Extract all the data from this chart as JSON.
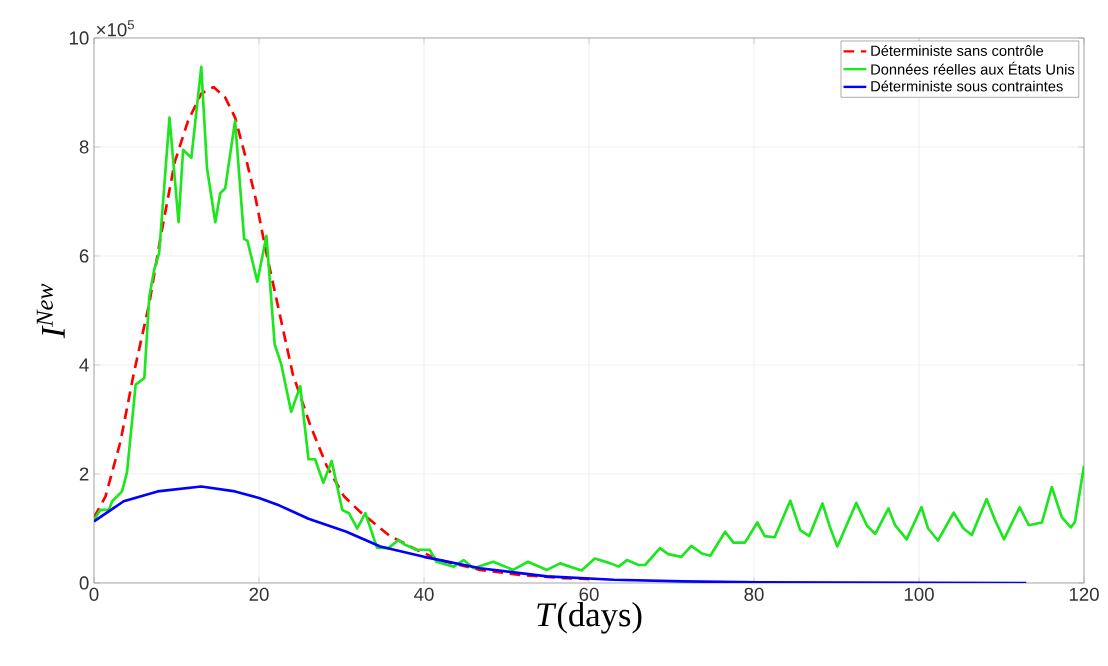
{
  "chart_data": {
    "type": "line",
    "xlabel": "*T*(days)",
    "ylabel": "I$^{New}$",
    "annotations": [
      "×10$^{5}$"
    ],
    "xlim": [
      0,
      120
    ],
    "ylim": [
      0,
      10
    ],
    "xticks": [
      0,
      20,
      40,
      60,
      80,
      100,
      120
    ],
    "yticks": [
      0,
      2,
      4,
      6,
      8,
      10
    ],
    "grid": true,
    "legend": "top right",
    "marker": "none",
    "series": [
      {
        "name": "Déterministe sans contrôle",
        "color": "#ff0000",
        "line_style": "dashed",
        "x": [
          0,
          1.4,
          3.2,
          4.8,
          6.7,
          8.1,
          9.8,
          11.4,
          13,
          14.5,
          15.9,
          17.1,
          18.4,
          19.6,
          20.8,
          22.5,
          24.1,
          26.2,
          28.2,
          30.3,
          32.3,
          35.8,
          39.1,
          41.9,
          46.8,
          51.6,
          56.9,
          60
        ],
        "values": [
          1.2,
          1.59,
          2.59,
          3.83,
          5.13,
          6.37,
          7.73,
          8.48,
          8.98,
          9.1,
          8.91,
          8.54,
          7.8,
          7.05,
          6.12,
          4.94,
          3.83,
          2.9,
          2.15,
          1.59,
          1.3,
          0.87,
          0.61,
          0.42,
          0.24,
          0.15,
          0.09,
          0.07
        ]
      },
      {
        "name": "Données réelles aux États Unis",
        "color": "#1ee61e",
        "line_style": "solid",
        "x": [
          0,
          0.75,
          1.8,
          2.2,
          3.4,
          4.0,
          5.05,
          6.1,
          6.7,
          7.3,
          7.9,
          9.15,
          10.25,
          10.8,
          11.8,
          13.0,
          13.7,
          14.7,
          15.3,
          15.9,
          17.1,
          18.2,
          18.6,
          19.8,
          20.9,
          21.9,
          22.7,
          23.9,
          25.0,
          26.0,
          26.8,
          27.8,
          28.8,
          30.1,
          30.9,
          31.9,
          32.9,
          34.3,
          35.7,
          36.9,
          37.7,
          39.1,
          40.7,
          41.5,
          43.6,
          44.8,
          46.0,
          48.4,
          50.8,
          52.6,
          54.9,
          56.5,
          59.1,
          60.7,
          62.6,
          63.6,
          64.6,
          66.0,
          66.8,
          68.6,
          69.6,
          71.2,
          72.4,
          73.7,
          74.7,
          76.5,
          77.5,
          78.9,
          80.4,
          81.3,
          82.5,
          84.4,
          85.6,
          86.7,
          88.3,
          89.2,
          90.1,
          92.4,
          93.7,
          94.7,
          96.3,
          97.1,
          98.5,
          100.3,
          101.1,
          102.3,
          104.2,
          105.4,
          106.4,
          108.2,
          109.2,
          110.3,
          112.2,
          113.3,
          114.9,
          116.1,
          117.3,
          118.4,
          118.9,
          120
        ],
        "values": [
          1.16,
          1.34,
          1.34,
          1.5,
          1.68,
          2.03,
          3.64,
          3.76,
          5.25,
          5.75,
          6.06,
          8.54,
          6.62,
          7.95,
          7.8,
          9.47,
          7.61,
          6.62,
          7.15,
          7.24,
          8.48,
          6.31,
          6.28,
          5.53,
          6.37,
          4.38,
          4.01,
          3.14,
          3.61,
          2.27,
          2.27,
          1.84,
          2.24,
          1.34,
          1.28,
          1.0,
          1.28,
          0.65,
          0.64,
          0.79,
          0.7,
          0.61,
          0.61,
          0.39,
          0.3,
          0.42,
          0.27,
          0.39,
          0.24,
          0.39,
          0.24,
          0.36,
          0.23,
          0.45,
          0.36,
          0.3,
          0.42,
          0.33,
          0.33,
          0.64,
          0.53,
          0.48,
          0.68,
          0.54,
          0.5,
          0.94,
          0.74,
          0.74,
          1.11,
          0.86,
          0.84,
          1.51,
          0.97,
          0.86,
          1.46,
          1.03,
          0.67,
          1.47,
          1.05,
          0.9,
          1.37,
          1.06,
          0.8,
          1.39,
          1.0,
          0.78,
          1.29,
          1.0,
          0.88,
          1.54,
          1.16,
          0.8,
          1.39,
          1.06,
          1.11,
          1.76,
          1.21,
          1.02,
          1.12,
          2.15
        ]
      },
      {
        "name": "Déterministe sous contraintes",
        "color": "#0000ff",
        "line_style": "solid",
        "x": [
          0,
          3.6,
          7.7,
          13,
          17.1,
          20,
          22.5,
          26,
          30.6,
          34.7,
          40,
          46.8,
          54.9,
          63,
          71.4,
          80.7,
          113
        ],
        "values": [
          1.13,
          1.5,
          1.68,
          1.77,
          1.68,
          1.56,
          1.42,
          1.18,
          0.94,
          0.67,
          0.48,
          0.27,
          0.12,
          0.06,
          0.03,
          0.01,
          0.0
        ]
      }
    ]
  }
}
